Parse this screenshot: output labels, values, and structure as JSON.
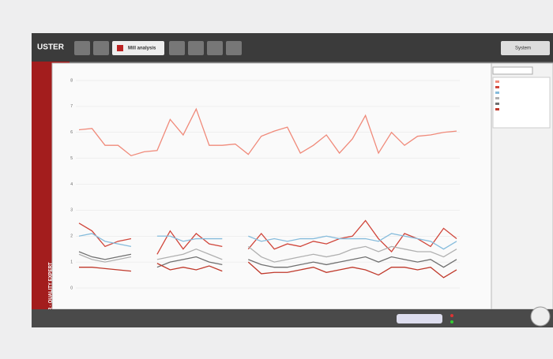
{
  "app": {
    "logo": "USTER",
    "brand": "USTER · QUALITY EXPERT"
  },
  "toolbar": {
    "active_tab": "Mill analysis",
    "system_button": "System"
  },
  "chart_data": {
    "type": "line",
    "grid": true,
    "categories": [
      null,
      null,
      null,
      null,
      null,
      null,
      null,
      null,
      null,
      null,
      null,
      null,
      null,
      null,
      null,
      null,
      null,
      null,
      null,
      null,
      null,
      null,
      null,
      null,
      null,
      null,
      null,
      null,
      null,
      null
    ],
    "ylim": [
      0,
      8
    ],
    "yticks": [
      0,
      1,
      2,
      3,
      4,
      5,
      6,
      7,
      8
    ],
    "series": [
      {
        "color": "#f08a7a",
        "values": [
          6.1,
          6.15,
          5.5,
          5.5,
          5.1,
          5.25,
          5.3,
          6.5,
          5.9,
          6.9,
          5.5,
          5.5,
          5.55,
          5.15,
          5.85,
          6.05,
          6.2,
          5.2,
          5.5,
          5.9,
          5.2,
          5.75,
          6.65,
          5.2,
          6.0,
          5.5,
          5.85,
          5.9,
          6.0,
          6.05
        ]
      },
      {
        "color": "#d0453a",
        "values": [
          2.5,
          2.2,
          1.6,
          1.8,
          1.9,
          null,
          1.3,
          2.2,
          1.5,
          2.1,
          1.7,
          1.6,
          null,
          1.5,
          2.1,
          1.5,
          1.7,
          1.6,
          1.8,
          1.7,
          1.9,
          2.0,
          2.6,
          1.9,
          1.4,
          2.1,
          1.9,
          1.6,
          2.3,
          1.9
        ]
      },
      {
        "color": "#86bcdc",
        "values": [
          2.0,
          2.1,
          1.8,
          1.7,
          1.6,
          null,
          2.0,
          2.0,
          1.8,
          1.9,
          1.9,
          1.9,
          null,
          2.0,
          1.8,
          1.9,
          1.8,
          1.9,
          1.9,
          2.0,
          1.9,
          1.9,
          1.9,
          1.8,
          2.1,
          2.0,
          1.9,
          1.8,
          1.5,
          1.8
        ]
      },
      {
        "color": "#b0b0b0",
        "values": [
          1.3,
          1.1,
          1.0,
          1.1,
          1.2,
          null,
          1.1,
          1.2,
          1.3,
          1.5,
          1.3,
          1.1,
          null,
          1.6,
          1.2,
          1.0,
          1.1,
          1.2,
          1.3,
          1.2,
          1.3,
          1.5,
          1.6,
          1.4,
          1.6,
          1.5,
          1.4,
          1.4,
          1.2,
          1.5
        ]
      },
      {
        "color": "#707070",
        "values": [
          1.4,
          1.2,
          1.1,
          1.2,
          1.3,
          null,
          0.8,
          1.0,
          1.1,
          1.2,
          1.0,
          0.9,
          null,
          1.1,
          0.9,
          0.8,
          0.8,
          0.9,
          1.0,
          0.9,
          1.0,
          1.1,
          1.2,
          1.0,
          1.2,
          1.1,
          1.0,
          1.1,
          0.8,
          1.1
        ]
      },
      {
        "color": "#c0392b",
        "values": [
          0.8,
          0.8,
          0.75,
          0.7,
          0.65,
          null,
          0.95,
          0.7,
          0.8,
          0.7,
          0.85,
          0.65,
          null,
          1.0,
          0.55,
          0.6,
          0.6,
          0.7,
          0.8,
          0.6,
          0.7,
          0.8,
          0.7,
          0.5,
          0.8,
          0.8,
          0.7,
          0.8,
          0.4,
          0.7
        ]
      }
    ]
  }
}
